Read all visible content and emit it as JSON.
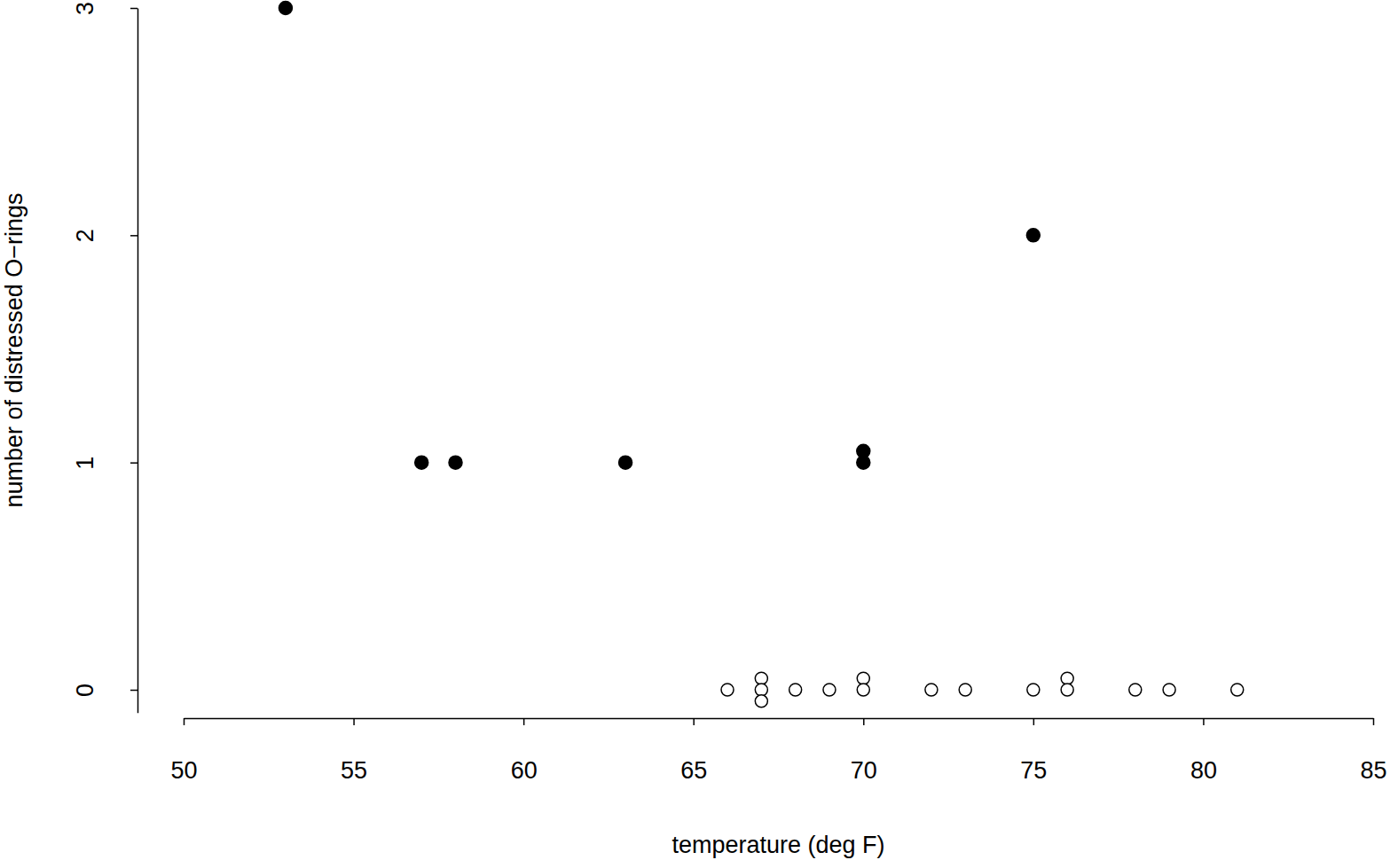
{
  "chart_data": {
    "type": "scatter",
    "x_label": "temperature (deg F)",
    "y_label": "number of distressed O−rings",
    "series": [
      {
        "marker": "filled",
        "color": "#000000",
        "x": [
          53,
          57,
          58,
          63,
          70,
          70,
          75
        ],
        "values": [
          3,
          1,
          1,
          1,
          1,
          1.05,
          2
        ]
      },
      {
        "marker": "open",
        "color": "#000000",
        "x": [
          66,
          67,
          67,
          67,
          68,
          69,
          70,
          70,
          72,
          73,
          75,
          76,
          76,
          78,
          79,
          81
        ],
        "values": [
          0,
          0.05,
          0,
          -0.05,
          0,
          0,
          0.05,
          0,
          0,
          0,
          0,
          0.05,
          0,
          0,
          0,
          0
        ]
      }
    ],
    "xlim": [
      50,
      85
    ],
    "xticks": [
      50,
      55,
      60,
      65,
      70,
      75,
      80,
      85
    ],
    "ylim": [
      -0.1,
      3
    ],
    "yticks": [
      0,
      1,
      2,
      3
    ]
  }
}
